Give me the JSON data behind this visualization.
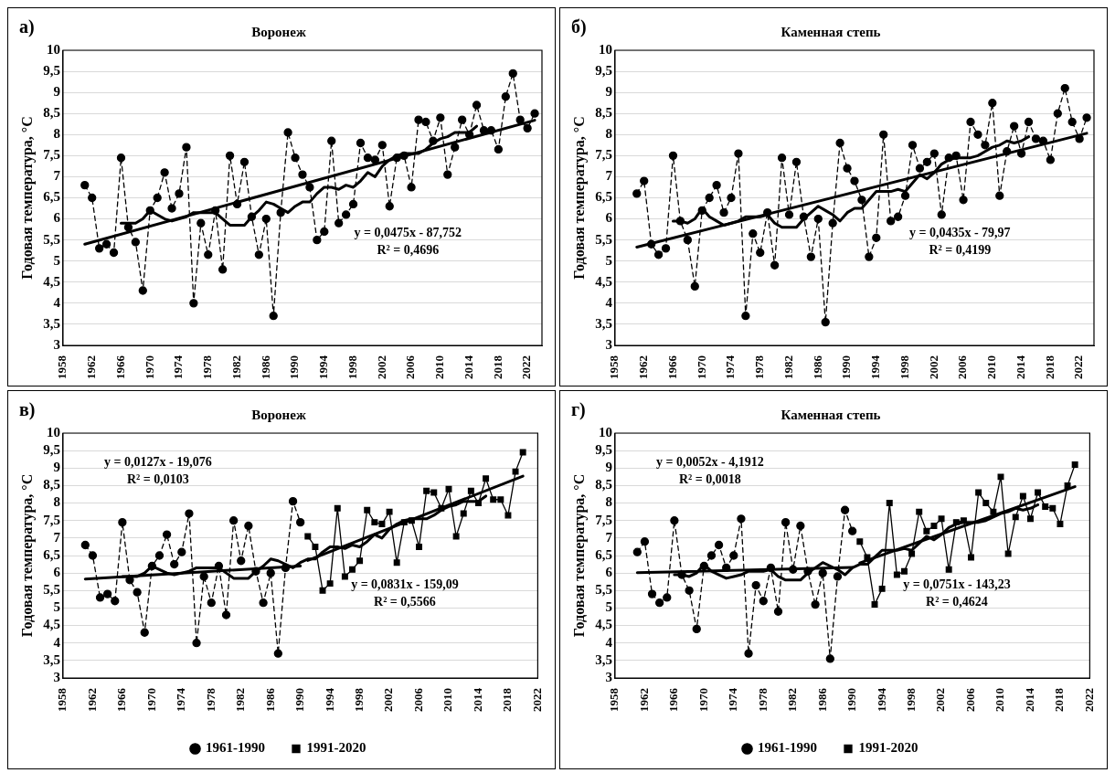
{
  "chart_data": [
    {
      "type": "line",
      "title": "Воронеж",
      "ylabel": "Годовая температура, °С",
      "annotations": [
        "а)",
        "y = 0,0475x - 87,752",
        "R² = 0,4696"
      ],
      "x": [
        1961,
        1962,
        1963,
        1964,
        1965,
        1966,
        1967,
        1968,
        1969,
        1970,
        1971,
        1972,
        1973,
        1974,
        1975,
        1976,
        1977,
        1978,
        1979,
        1980,
        1981,
        1982,
        1983,
        1984,
        1985,
        1986,
        1987,
        1988,
        1989,
        1990,
        1991,
        1992,
        1993,
        1994,
        1995,
        1996,
        1997,
        1998,
        1999,
        2000,
        2001,
        2002,
        2003,
        2004,
        2005,
        2006,
        2007,
        2008,
        2009,
        2010,
        2011,
        2012,
        2013,
        2014,
        2015,
        2016,
        2017,
        2018,
        2019,
        2020,
        2021,
        2022,
        2023
      ],
      "series": [
        {
          "color": "#000000",
          "marker": "circle",
          "line_style": "dashed",
          "values": [
            6.8,
            6.5,
            5.3,
            5.4,
            5.2,
            7.45,
            5.8,
            5.45,
            4.3,
            6.2,
            6.5,
            7.1,
            6.25,
            6.6,
            7.7,
            4.0,
            5.9,
            5.15,
            6.2,
            4.8,
            7.5,
            6.35,
            7.35,
            6.05,
            5.15,
            6.0,
            3.7,
            6.15,
            8.05,
            7.45,
            7.05,
            6.75,
            5.5,
            5.7,
            7.85,
            5.9,
            6.1,
            6.35,
            7.8,
            7.45,
            7.4,
            7.75,
            6.3,
            7.45,
            7.5,
            6.75,
            8.35,
            8.3,
            7.85,
            8.4,
            7.05,
            7.7,
            8.35,
            8.0,
            8.7,
            8.1,
            8.1,
            7.65,
            8.9,
            9.45,
            8.35,
            8.15,
            8.5
          ]
        },
        {
          "color": "#000000",
          "marker": "none",
          "x": [
            1966,
            1967,
            1968,
            1969,
            1970,
            1971,
            1972,
            1973,
            1974,
            1975,
            1976,
            1977,
            1978,
            1979,
            1980,
            1981,
            1982,
            1983,
            1984,
            1985,
            1986,
            1987,
            1988,
            1989,
            1990,
            1991,
            1992,
            1993,
            1994,
            1995,
            1996,
            1997,
            1998,
            1999,
            2000,
            2001,
            2002,
            2003,
            2004,
            2005,
            2006,
            2007,
            2008,
            2009,
            2010,
            2011,
            2012,
            2013,
            2014,
            2015
          ],
          "values": [
            5.9,
            5.9,
            5.9,
            6.0,
            6.2,
            6.1,
            6.0,
            5.95,
            6.0,
            6.05,
            6.15,
            6.15,
            6.15,
            6.15,
            6.0,
            5.85,
            5.85,
            5.85,
            6.05,
            6.2,
            6.4,
            6.35,
            6.25,
            6.15,
            6.3,
            6.4,
            6.4,
            6.6,
            6.75,
            6.75,
            6.7,
            6.8,
            6.75,
            6.9,
            7.1,
            7.0,
            7.25,
            7.4,
            7.5,
            7.55,
            7.55,
            7.55,
            7.65,
            7.8,
            7.9,
            7.95,
            8.05,
            8.05,
            8.05,
            8.2
          ]
        },
        {
          "color": "#000000",
          "marker": "none",
          "x": [
            1961,
            2023
          ],
          "values": [
            5.4,
            8.34
          ]
        }
      ],
      "xlim": [
        1958,
        2024
      ],
      "xticks": [
        1958,
        1962,
        1966,
        1970,
        1974,
        1978,
        1982,
        1986,
        1990,
        1994,
        1998,
        2002,
        2006,
        2010,
        2014,
        2018,
        2022
      ],
      "ylim": [
        3,
        10
      ],
      "yticks": [
        3,
        {
          "value": 3.5,
          "label": "3,5"
        },
        4,
        {
          "value": 4.5,
          "label": "4,5"
        },
        5,
        {
          "value": 5.5,
          "label": "5,5"
        },
        6,
        {
          "value": 6.5,
          "label": "6,5"
        },
        7,
        {
          "value": 7.5,
          "label": "7,5"
        },
        8,
        {
          "value": 8.5,
          "label": "8,5"
        },
        9,
        {
          "value": 9.5,
          "label": "9,5"
        },
        10
      ],
      "grid": "y",
      "legend": false
    },
    {
      "type": "line",
      "title": "Каменная степь",
      "ylabel": "Годовая температура, °С",
      "annotations": [
        "б)",
        "y = 0,0435x - 79,97",
        "R² = 0,4199"
      ],
      "x": [
        1961,
        1962,
        1963,
        1964,
        1965,
        1966,
        1967,
        1968,
        1969,
        1970,
        1971,
        1972,
        1973,
        1974,
        1975,
        1976,
        1977,
        1978,
        1979,
        1980,
        1981,
        1982,
        1983,
        1984,
        1985,
        1986,
        1987,
        1988,
        1989,
        1990,
        1991,
        1992,
        1993,
        1994,
        1995,
        1996,
        1997,
        1998,
        1999,
        2000,
        2001,
        2002,
        2003,
        2004,
        2005,
        2006,
        2007,
        2008,
        2009,
        2010,
        2011,
        2012,
        2013,
        2014,
        2015,
        2016,
        2017,
        2018,
        2019,
        2020,
        2021,
        2022,
        2023
      ],
      "series": [
        {
          "color": "#000000",
          "marker": "circle",
          "line_style": "dashed",
          "values": [
            6.6,
            6.9,
            5.4,
            5.15,
            5.3,
            7.5,
            5.95,
            5.5,
            4.4,
            6.2,
            6.5,
            6.8,
            6.15,
            6.5,
            7.55,
            3.7,
            5.65,
            5.2,
            6.15,
            4.9,
            7.45,
            6.1,
            7.35,
            6.05,
            5.1,
            6.0,
            3.55,
            5.9,
            7.8,
            7.2,
            6.9,
            6.45,
            5.1,
            5.55,
            8.0,
            5.95,
            6.05,
            6.55,
            7.75,
            7.2,
            7.35,
            7.55,
            6.1,
            7.45,
            7.5,
            6.45,
            8.3,
            8.0,
            7.75,
            8.75,
            6.55,
            7.6,
            8.2,
            7.55,
            8.3,
            7.9,
            7.85,
            7.4,
            8.5,
            9.1,
            8.3,
            7.9,
            8.4
          ]
        },
        {
          "color": "#000000",
          "marker": "none",
          "x": [
            1966,
            1967,
            1968,
            1969,
            1970,
            1971,
            1972,
            1973,
            1974,
            1975,
            1976,
            1977,
            1978,
            1979,
            1980,
            1981,
            1982,
            1983,
            1984,
            1985,
            1986,
            1987,
            1988,
            1989,
            1990,
            1991,
            1992,
            1993,
            1994,
            1995,
            1996,
            1997,
            1998,
            1999,
            2000,
            2001,
            2002,
            2003,
            2004,
            2005,
            2006,
            2007,
            2008,
            2009,
            2010,
            2011,
            2012,
            2013,
            2014,
            2015
          ],
          "values": [
            5.95,
            5.95,
            5.9,
            6.0,
            6.25,
            6.05,
            5.95,
            5.85,
            5.9,
            5.95,
            6.05,
            6.05,
            6.05,
            6.1,
            5.9,
            5.8,
            5.8,
            5.8,
            6.0,
            6.15,
            6.3,
            6.2,
            6.1,
            5.95,
            6.15,
            6.25,
            6.25,
            6.45,
            6.65,
            6.65,
            6.65,
            6.7,
            6.65,
            6.85,
            7.05,
            6.95,
            7.1,
            7.3,
            7.4,
            7.45,
            7.45,
            7.45,
            7.5,
            7.6,
            7.7,
            7.75,
            7.85,
            7.8,
            7.85,
            7.95
          ]
        },
        {
          "color": "#000000",
          "marker": "none",
          "x": [
            1961,
            2023
          ],
          "values": [
            5.33,
            8.03
          ]
        }
      ],
      "xlim": [
        1958,
        2024
      ],
      "xticks": [
        1958,
        1962,
        1966,
        1970,
        1974,
        1978,
        1982,
        1986,
        1990,
        1994,
        1998,
        2002,
        2006,
        2010,
        2014,
        2018,
        2022
      ],
      "ylim": [
        3,
        10
      ],
      "yticks": [
        3,
        {
          "value": 3.5,
          "label": "3,5"
        },
        4,
        {
          "value": 4.5,
          "label": "4,5"
        },
        5,
        {
          "value": 5.5,
          "label": "5,5"
        },
        6,
        {
          "value": 6.5,
          "label": "6,5"
        },
        7,
        {
          "value": 7.5,
          "label": "7,5"
        },
        8,
        {
          "value": 8.5,
          "label": "8,5"
        },
        9,
        {
          "value": 9.5,
          "label": "9,5"
        },
        10
      ],
      "grid": "y",
      "legend": false
    },
    {
      "type": "line",
      "title": "Воронеж",
      "ylabel": "Годовая температура, °С",
      "annotations": [
        "в)",
        "y = 0,0127x - 19,076",
        "R² = 0,0103",
        "y = 0,0831x - 159,09",
        "R² = 0,5566"
      ],
      "series": [
        {
          "name": "1961-1990",
          "color": "#000000",
          "marker": "circle",
          "line_style": "dashed",
          "x": [
            1961,
            1962,
            1963,
            1964,
            1965,
            1966,
            1967,
            1968,
            1969,
            1970,
            1971,
            1972,
            1973,
            1974,
            1975,
            1976,
            1977,
            1978,
            1979,
            1980,
            1981,
            1982,
            1983,
            1984,
            1985,
            1986,
            1987,
            1988,
            1989,
            1990
          ],
          "values": [
            6.8,
            6.5,
            5.3,
            5.4,
            5.2,
            7.45,
            5.8,
            5.45,
            4.3,
            6.2,
            6.5,
            7.1,
            6.25,
            6.6,
            7.7,
            4.0,
            5.9,
            5.15,
            6.2,
            4.8,
            7.5,
            6.35,
            7.35,
            6.05,
            5.15,
            6.0,
            3.7,
            6.15,
            8.05,
            7.45
          ]
        },
        {
          "name": "1991-2020",
          "color": "#000000",
          "marker": "square",
          "line_style": "solid",
          "x": [
            1991,
            1992,
            1993,
            1994,
            1995,
            1996,
            1997,
            1998,
            1999,
            2000,
            2001,
            2002,
            2003,
            2004,
            2005,
            2006,
            2007,
            2008,
            2009,
            2010,
            2011,
            2012,
            2013,
            2014,
            2015,
            2016,
            2017,
            2018,
            2019,
            2020
          ],
          "values": [
            7.05,
            6.75,
            5.5,
            5.7,
            7.85,
            5.9,
            6.1,
            6.35,
            7.8,
            7.45,
            7.4,
            7.75,
            6.3,
            7.45,
            7.5,
            6.75,
            8.35,
            8.3,
            7.85,
            8.4,
            7.05,
            7.7,
            8.35,
            8.0,
            8.7,
            8.1,
            8.1,
            7.65,
            8.9,
            9.45
          ]
        },
        {
          "color": "#000000",
          "marker": "none",
          "x": [
            1966,
            1967,
            1968,
            1969,
            1970,
            1971,
            1972,
            1973,
            1974,
            1975,
            1976,
            1977,
            1978,
            1979,
            1980,
            1981,
            1982,
            1983,
            1984,
            1985,
            1986,
            1987,
            1988,
            1989,
            1990,
            1991,
            1992,
            1993,
            1994,
            1995,
            1996,
            1997,
            1998,
            1999,
            2000,
            2001,
            2002,
            2003,
            2004,
            2005,
            2006,
            2007,
            2008,
            2009,
            2010,
            2011,
            2012,
            2013,
            2014,
            2015
          ],
          "values": [
            5.9,
            5.9,
            5.9,
            6.0,
            6.2,
            6.1,
            6.0,
            5.95,
            6.0,
            6.05,
            6.15,
            6.15,
            6.15,
            6.15,
            6.0,
            5.85,
            5.85,
            5.85,
            6.05,
            6.2,
            6.4,
            6.35,
            6.25,
            6.15,
            6.3,
            6.4,
            6.4,
            6.6,
            6.75,
            6.75,
            6.7,
            6.8,
            6.75,
            6.9,
            7.1,
            7.0,
            7.25,
            7.4,
            7.5,
            7.55,
            7.55,
            7.55,
            7.65,
            7.8,
            7.9,
            7.95,
            8.05,
            8.05,
            8.05,
            8.2
          ]
        },
        {
          "color": "#000000",
          "marker": "none",
          "x": [
            1961,
            1990
          ],
          "values": [
            5.83,
            6.2
          ]
        },
        {
          "color": "#000000",
          "marker": "none",
          "x": [
            1991,
            2020
          ],
          "values": [
            6.36,
            8.77
          ]
        }
      ],
      "xlim": [
        1958,
        2022
      ],
      "xticks": [
        1958,
        1962,
        1966,
        1970,
        1974,
        1978,
        1982,
        1986,
        1990,
        1994,
        1998,
        2002,
        2006,
        2010,
        2014,
        2018,
        2022
      ],
      "ylim": [
        3,
        10
      ],
      "yticks": [
        3,
        {
          "value": 3.5,
          "label": "3,5"
        },
        4,
        {
          "value": 4.5,
          "label": "4,5"
        },
        5,
        {
          "value": 5.5,
          "label": "5,5"
        },
        6,
        {
          "value": 6.5,
          "label": "6,5"
        },
        7,
        {
          "value": 7.5,
          "label": "7,5"
        },
        8,
        {
          "value": 8.5,
          "label": "8,5"
        },
        9,
        {
          "value": 9.5,
          "label": "9,5"
        },
        10
      ],
      "grid": "y",
      "legend": "bottom"
    },
    {
      "type": "line",
      "title": "Каменная степь",
      "ylabel": "Годовая температура, °С",
      "annotations": [
        "г)",
        "y = 0,0052x - 4,1912",
        "R² = 0,0018",
        "y = 0,0751x - 143,23",
        "R² = 0,4624"
      ],
      "series": [
        {
          "name": "1961-1990",
          "color": "#000000",
          "marker": "circle",
          "line_style": "dashed",
          "x": [
            1961,
            1962,
            1963,
            1964,
            1965,
            1966,
            1967,
            1968,
            1969,
            1970,
            1971,
            1972,
            1973,
            1974,
            1975,
            1976,
            1977,
            1978,
            1979,
            1980,
            1981,
            1982,
            1983,
            1984,
            1985,
            1986,
            1987,
            1988,
            1989,
            1990
          ],
          "values": [
            6.6,
            6.9,
            5.4,
            5.15,
            5.3,
            7.5,
            5.95,
            5.5,
            4.4,
            6.2,
            6.5,
            6.8,
            6.15,
            6.5,
            7.55,
            3.7,
            5.65,
            5.2,
            6.15,
            4.9,
            7.45,
            6.1,
            7.35,
            6.05,
            5.1,
            6.0,
            3.55,
            5.9,
            7.8,
            7.2
          ]
        },
        {
          "name": "1991-2020",
          "color": "#000000",
          "marker": "square",
          "line_style": "solid",
          "x": [
            1991,
            1992,
            1993,
            1994,
            1995,
            1996,
            1997,
            1998,
            1999,
            2000,
            2001,
            2002,
            2003,
            2004,
            2005,
            2006,
            2007,
            2008,
            2009,
            2010,
            2011,
            2012,
            2013,
            2014,
            2015,
            2016,
            2017,
            2018,
            2019,
            2020
          ],
          "values": [
            6.9,
            6.45,
            5.1,
            5.55,
            8.0,
            5.95,
            6.05,
            6.55,
            7.75,
            7.2,
            7.35,
            7.55,
            6.1,
            7.45,
            7.5,
            6.45,
            8.3,
            8.0,
            7.75,
            8.75,
            6.55,
            7.6,
            8.2,
            7.55,
            8.3,
            7.9,
            7.85,
            7.4,
            8.5,
            9.1
          ]
        },
        {
          "color": "#000000",
          "marker": "none",
          "x": [
            1966,
            1967,
            1968,
            1969,
            1970,
            1971,
            1972,
            1973,
            1974,
            1975,
            1976,
            1977,
            1978,
            1979,
            1980,
            1981,
            1982,
            1983,
            1984,
            1985,
            1986,
            1987,
            1988,
            1989,
            1990,
            1991,
            1992,
            1993,
            1994,
            1995,
            1996,
            1997,
            1998,
            1999,
            2000,
            2001,
            2002,
            2003,
            2004,
            2005,
            2006,
            2007,
            2008,
            2009,
            2010,
            2011,
            2012,
            2013,
            2014,
            2015
          ],
          "values": [
            5.95,
            5.95,
            5.9,
            6.0,
            6.25,
            6.05,
            5.95,
            5.85,
            5.9,
            5.95,
            6.05,
            6.05,
            6.05,
            6.1,
            5.9,
            5.8,
            5.8,
            5.8,
            6.0,
            6.15,
            6.3,
            6.2,
            6.1,
            5.95,
            6.15,
            6.25,
            6.25,
            6.45,
            6.65,
            6.65,
            6.65,
            6.7,
            6.65,
            6.85,
            7.05,
            6.95,
            7.1,
            7.3,
            7.4,
            7.45,
            7.45,
            7.45,
            7.5,
            7.6,
            7.7,
            7.75,
            7.85,
            7.8,
            7.85,
            7.95
          ]
        },
        {
          "color": "#000000",
          "marker": "none",
          "x": [
            1961,
            1990
          ],
          "values": [
            6.01,
            6.16
          ]
        },
        {
          "color": "#000000",
          "marker": "none",
          "x": [
            1991,
            2020
          ],
          "values": [
            6.29,
            8.47
          ]
        }
      ],
      "xlim": [
        1958,
        2022
      ],
      "xticks": [
        1958,
        1962,
        1966,
        1970,
        1974,
        1978,
        1982,
        1986,
        1990,
        1994,
        1998,
        2002,
        2006,
        2010,
        2014,
        2018,
        2022
      ],
      "ylim": [
        3,
        10
      ],
      "yticks": [
        3,
        {
          "value": 3.5,
          "label": "3,5"
        },
        4,
        {
          "value": 4.5,
          "label": "4,5"
        },
        5,
        {
          "value": 5.5,
          "label": "5,5"
        },
        6,
        {
          "value": 6.5,
          "label": "6,5"
        },
        7,
        {
          "value": 7.5,
          "label": "7,5"
        },
        8,
        {
          "value": 8.5,
          "label": "8,5"
        },
        9,
        {
          "value": 9.5,
          "label": "9,5"
        },
        10
      ],
      "grid": "y",
      "legend": "bottom"
    }
  ]
}
